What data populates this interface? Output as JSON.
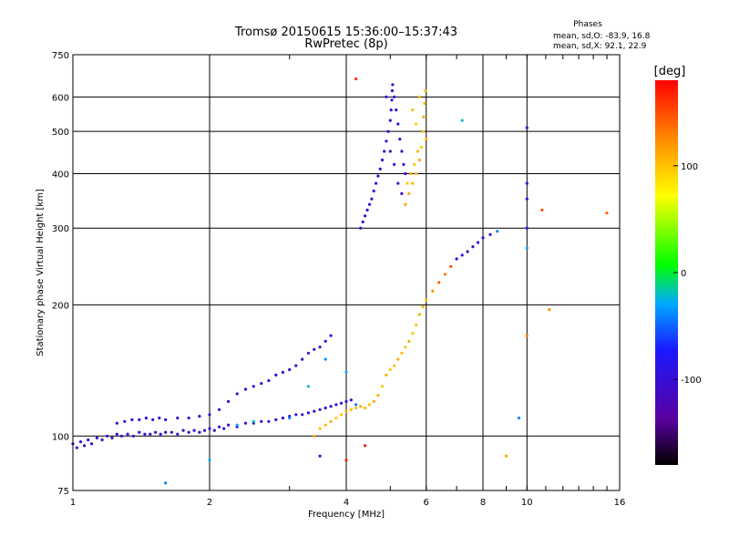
{
  "chart_data": {
    "type": "scatter",
    "title": "Tromsø 20150615 15:36:00–15:37:43",
    "subtitle": "RwPretec (8p)",
    "xlabel": "Frequency [MHz]",
    "ylabel": "Stationary phase Virtual Height [km]",
    "x_scale": "log",
    "y_scale": "log",
    "xlim": [
      1,
      16
    ],
    "ylim": [
      75,
      750
    ],
    "x_ticks": [
      1,
      2,
      4,
      6,
      8,
      10,
      16
    ],
    "x_tick_labels": [
      "1",
      "2",
      "4",
      "6",
      "8",
      "10",
      "16"
    ],
    "y_ticks": [
      75,
      100,
      200,
      300,
      400,
      500,
      600,
      750
    ],
    "y_tick_labels": [
      "75",
      "100",
      "200",
      "300",
      "400",
      "500",
      "600",
      "750"
    ],
    "grid": true,
    "legend": {
      "title": "Phases",
      "lines": [
        "mean, sd,O: -83.9, 16.8",
        "mean, sd,X:  92.1, 22.9"
      ],
      "position": "top-right"
    },
    "colorbar": {
      "label": "[deg]",
      "range": [
        -180,
        180
      ],
      "ticks": [
        100,
        0,
        -100
      ],
      "tick_labels": [
        "100",
        "0",
        "-100"
      ],
      "colors": [
        "#000000",
        "#5a00a0",
        "#1a1aff",
        "#00aaff",
        "#00ff00",
        "#ffff00",
        "#ff8800",
        "#ff0000"
      ]
    },
    "series": [
      {
        "points": [
          [
            1.0,
            96,
            -105
          ],
          [
            1.02,
            94,
            -95
          ],
          [
            1.04,
            97,
            -100
          ],
          [
            1.06,
            95,
            -110
          ],
          [
            1.08,
            98,
            -90
          ],
          [
            1.1,
            96,
            -100
          ],
          [
            1.13,
            99,
            -105
          ],
          [
            1.16,
            98,
            -95
          ],
          [
            1.19,
            100,
            -100
          ],
          [
            1.22,
            99,
            -110
          ],
          [
            1.25,
            101,
            -95
          ],
          [
            1.28,
            100,
            -105
          ],
          [
            1.32,
            101,
            -90
          ],
          [
            1.36,
            100,
            -100
          ],
          [
            1.4,
            102,
            -110
          ],
          [
            1.44,
            101,
            -95
          ],
          [
            1.48,
            101,
            -105
          ],
          [
            1.52,
            102,
            -100
          ],
          [
            1.56,
            101,
            -90
          ],
          [
            1.6,
            102,
            -110
          ],
          [
            1.65,
            102,
            -100
          ],
          [
            1.7,
            101,
            -95
          ],
          [
            1.75,
            103,
            -105
          ],
          [
            1.8,
            102,
            -100
          ],
          [
            1.85,
            103,
            -90
          ],
          [
            1.9,
            102,
            -110
          ],
          [
            1.95,
            103,
            -100
          ],
          [
            2.0,
            104,
            -95
          ],
          [
            2.05,
            103,
            -105
          ],
          [
            2.1,
            105,
            -100
          ],
          [
            2.15,
            104,
            -90
          ],
          [
            2.2,
            106,
            -110
          ],
          [
            2.3,
            105,
            -100
          ],
          [
            2.4,
            107,
            -95
          ],
          [
            2.5,
            107,
            -105
          ],
          [
            2.6,
            108,
            -100
          ],
          [
            2.7,
            108,
            -90
          ],
          [
            2.8,
            109,
            -110
          ],
          [
            2.9,
            110,
            -100
          ],
          [
            3.0,
            111,
            -95
          ],
          [
            3.1,
            112,
            -105
          ],
          [
            3.2,
            112,
            -100
          ],
          [
            3.3,
            113,
            -90
          ],
          [
            3.4,
            114,
            -110
          ],
          [
            3.5,
            115,
            -100
          ],
          [
            3.6,
            116,
            -95
          ],
          [
            3.7,
            117,
            -105
          ],
          [
            3.8,
            118,
            -100
          ],
          [
            3.9,
            119,
            -90
          ],
          [
            4.0,
            120,
            -110
          ],
          [
            4.1,
            121,
            -100
          ],
          [
            1.25,
            107,
            -100
          ],
          [
            1.3,
            108,
            -95
          ],
          [
            1.35,
            109,
            -105
          ],
          [
            1.4,
            109,
            -100
          ],
          [
            1.45,
            110,
            -90
          ],
          [
            1.5,
            109,
            -110
          ],
          [
            1.55,
            110,
            -100
          ],
          [
            1.6,
            109,
            -95
          ],
          [
            1.7,
            110,
            -105
          ],
          [
            1.8,
            110,
            -100
          ],
          [
            1.9,
            111,
            -90
          ],
          [
            2.0,
            112,
            -110
          ],
          [
            2.1,
            115,
            -100
          ],
          [
            2.2,
            120,
            -95
          ],
          [
            2.3,
            125,
            -105
          ],
          [
            2.4,
            128,
            -100
          ],
          [
            2.5,
            130,
            -90
          ],
          [
            2.6,
            132,
            -110
          ],
          [
            2.7,
            134,
            -100
          ],
          [
            2.8,
            138,
            -95
          ],
          [
            2.9,
            140,
            -105
          ],
          [
            3.0,
            142,
            -100
          ],
          [
            3.1,
            145,
            -90
          ],
          [
            3.2,
            150,
            -110
          ],
          [
            3.3,
            155,
            -100
          ],
          [
            3.4,
            158,
            -95
          ],
          [
            3.5,
            160,
            -105
          ],
          [
            3.6,
            165,
            -100
          ],
          [
            3.7,
            170,
            -90
          ],
          [
            2.3,
            106,
            -30
          ],
          [
            2.5,
            108,
            -20
          ],
          [
            3.0,
            110,
            -40
          ],
          [
            3.3,
            130,
            -25
          ],
          [
            3.6,
            150,
            -35
          ],
          [
            4.0,
            140,
            -30
          ],
          [
            4.2,
            118,
            -40
          ],
          [
            4.4,
            116,
            -35
          ],
          [
            3.4,
            100,
            110
          ],
          [
            3.5,
            104,
            100
          ],
          [
            3.6,
            106,
            105
          ],
          [
            3.7,
            108,
            110
          ],
          [
            3.8,
            110,
            95
          ],
          [
            3.9,
            112,
            100
          ],
          [
            4.0,
            114,
            110
          ],
          [
            4.1,
            115,
            105
          ],
          [
            4.2,
            116,
            100
          ],
          [
            4.3,
            117,
            110
          ],
          [
            4.4,
            116,
            95
          ],
          [
            4.5,
            118,
            100
          ],
          [
            4.6,
            120,
            110
          ],
          [
            4.7,
            124,
            105
          ],
          [
            4.8,
            130,
            100
          ],
          [
            4.9,
            138,
            110
          ],
          [
            5.0,
            142,
            95
          ],
          [
            5.1,
            145,
            100
          ],
          [
            5.2,
            150,
            110
          ],
          [
            5.3,
            155,
            105
          ],
          [
            5.4,
            160,
            100
          ],
          [
            5.5,
            165,
            110
          ],
          [
            5.6,
            172,
            95
          ],
          [
            5.7,
            180,
            100
          ],
          [
            5.8,
            190,
            110
          ],
          [
            5.9,
            198,
            105
          ],
          [
            6.0,
            205,
            100
          ],
          [
            6.2,
            215,
            120
          ],
          [
            6.4,
            225,
            140
          ],
          [
            6.6,
            235,
            130
          ],
          [
            6.8,
            245,
            150
          ],
          [
            7.0,
            255,
            -100
          ],
          [
            7.2,
            260,
            -90
          ],
          [
            7.4,
            265,
            -105
          ],
          [
            7.6,
            272,
            -100
          ],
          [
            7.8,
            278,
            -95
          ],
          [
            8.0,
            285,
            -105
          ],
          [
            8.3,
            290,
            -100
          ],
          [
            8.6,
            295,
            -40
          ],
          [
            4.3,
            300,
            -100
          ],
          [
            4.35,
            310,
            -95
          ],
          [
            4.4,
            320,
            -105
          ],
          [
            4.45,
            330,
            -100
          ],
          [
            4.5,
            340,
            -90
          ],
          [
            4.55,
            350,
            -110
          ],
          [
            4.6,
            365,
            -100
          ],
          [
            4.65,
            380,
            -95
          ],
          [
            4.7,
            395,
            -105
          ],
          [
            4.75,
            410,
            -100
          ],
          [
            4.8,
            430,
            -90
          ],
          [
            4.85,
            450,
            -110
          ],
          [
            4.9,
            475,
            -100
          ],
          [
            4.95,
            500,
            -95
          ],
          [
            5.0,
            530,
            -105
          ],
          [
            5.02,
            560,
            -100
          ],
          [
            5.04,
            590,
            -90
          ],
          [
            5.05,
            620,
            -110
          ],
          [
            5.06,
            640,
            -100
          ],
          [
            5.1,
            600,
            -95
          ],
          [
            5.15,
            560,
            -105
          ],
          [
            5.2,
            520,
            -100
          ],
          [
            5.25,
            480,
            -90
          ],
          [
            5.3,
            450,
            -110
          ],
          [
            5.35,
            420,
            -100
          ],
          [
            5.4,
            400,
            -95
          ],
          [
            4.9,
            600,
            -100
          ],
          [
            5.0,
            450,
            -105
          ],
          [
            5.1,
            420,
            -95
          ],
          [
            5.2,
            380,
            -100
          ],
          [
            5.3,
            360,
            -110
          ],
          [
            5.4,
            340,
            -90
          ],
          [
            5.4,
            340,
            100
          ],
          [
            5.5,
            360,
            110
          ],
          [
            5.6,
            380,
            105
          ],
          [
            5.7,
            400,
            100
          ],
          [
            5.8,
            430,
            110
          ],
          [
            5.85,
            460,
            95
          ],
          [
            5.9,
            500,
            100
          ],
          [
            5.92,
            540,
            110
          ],
          [
            5.95,
            580,
            105
          ],
          [
            5.97,
            620,
            100
          ],
          [
            6.0,
            480,
            110
          ],
          [
            5.7,
            520,
            95
          ],
          [
            5.6,
            560,
            100
          ],
          [
            5.8,
            600,
            110
          ],
          [
            5.75,
            450,
            105
          ],
          [
            5.65,
            420,
            100
          ],
          [
            5.55,
            400,
            110
          ],
          [
            5.45,
            380,
            95
          ],
          [
            10.0,
            510,
            -100
          ],
          [
            10.0,
            380,
            -105
          ],
          [
            10.0,
            350,
            -95
          ],
          [
            10.0,
            300,
            -100
          ],
          [
            10.0,
            270,
            -30
          ],
          [
            9.6,
            110,
            -40
          ],
          [
            9.0,
            90,
            110
          ],
          [
            10.0,
            170,
            130
          ],
          [
            10.8,
            330,
            150
          ],
          [
            11.2,
            195,
            120
          ],
          [
            15.0,
            325,
            140
          ],
          [
            4.2,
            660,
            160
          ],
          [
            7.2,
            530,
            -20
          ],
          [
            3.5,
            90,
            -100
          ],
          [
            4.0,
            88,
            170
          ],
          [
            4.4,
            95,
            170
          ],
          [
            2.0,
            88,
            -30
          ],
          [
            1.6,
            78,
            -40
          ]
        ]
      }
    ]
  }
}
